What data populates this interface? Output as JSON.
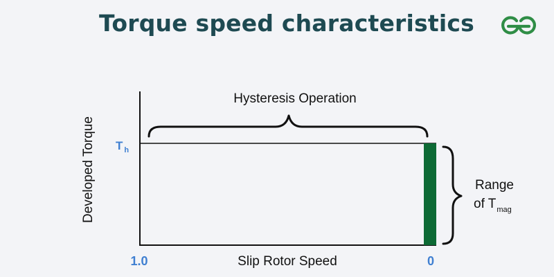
{
  "title": "Torque speed characteristics",
  "logo": {
    "icon": "geeksforgeeks-logo",
    "color": "#2f8d46"
  },
  "diagram": {
    "top_label": "Hysteresis Operation",
    "y_axis_label": "Developed Torque",
    "y_tick": {
      "main": "T",
      "sub": "h"
    },
    "x_axis_label": "Slip Rotor Speed",
    "x_tick_left": "1.0",
    "x_tick_right": "0",
    "range_label_line1": "Range",
    "range_label_line2_prefix": "of T",
    "range_label_sub": "mag",
    "colors": {
      "title": "#1e4a52",
      "tick_labels": "#3f7fd1",
      "bar": "#0d6a35",
      "lines": "#111111",
      "background": "#f3f4f7"
    }
  }
}
